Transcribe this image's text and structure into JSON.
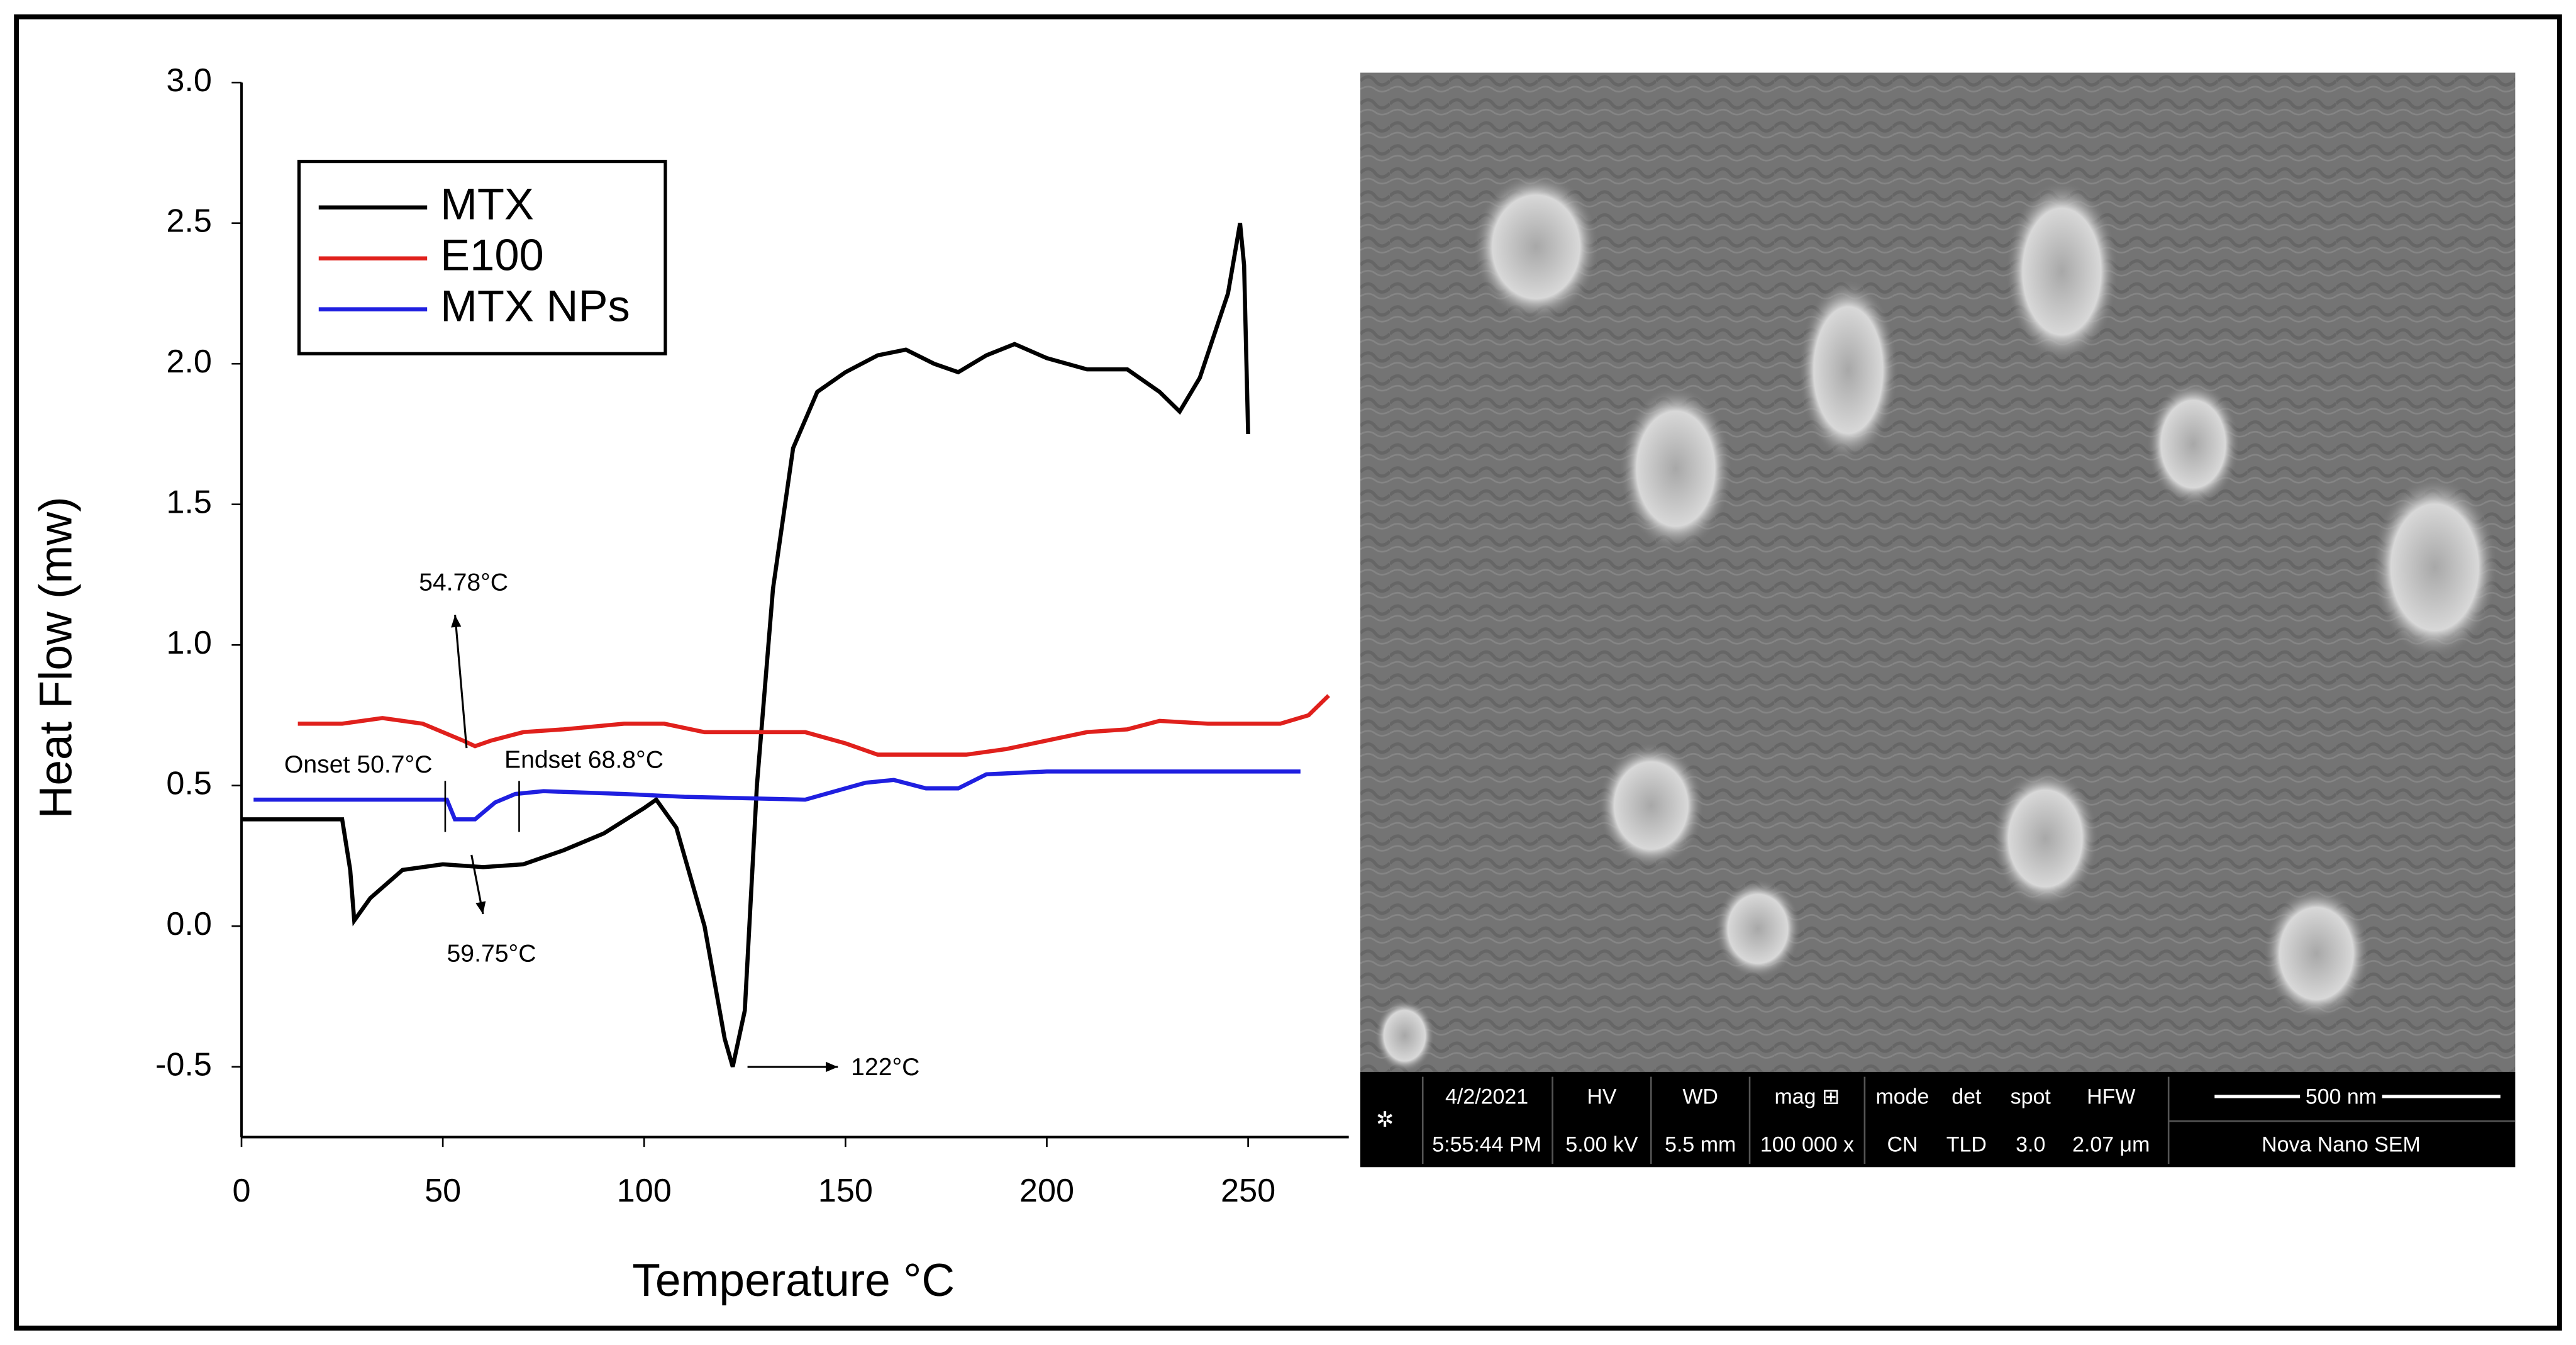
{
  "chart_data": {
    "type": "line",
    "x_label": "Temperature °C",
    "y_label": "Heat Flow (mw)",
    "xlim": [
      0,
      275
    ],
    "ylim": [
      -0.75,
      3.0
    ],
    "xticks": [
      0,
      50,
      100,
      150,
      200,
      250
    ],
    "yticks": [
      -0.5,
      {
        "value": 0,
        "label": "0.0"
      },
      0.5,
      {
        "value": 1,
        "label": "1.0"
      },
      1.5,
      {
        "value": 2,
        "label": "2.0"
      },
      2.5,
      {
        "value": 3,
        "label": "3.0"
      }
    ],
    "legend": "upper left",
    "series": [
      {
        "name": "MTX",
        "color": "#000000",
        "x": [
          0,
          25,
          27,
          28,
          32,
          40,
          50,
          60,
          70,
          80,
          90,
          100,
          103,
          108,
          115,
          120,
          122,
          125,
          128,
          132,
          137,
          143,
          150,
          158,
          165,
          172,
          178,
          185,
          192,
          200,
          210,
          220,
          228,
          233,
          238,
          245,
          248,
          249,
          250
        ],
        "values": [
          0.38,
          0.38,
          0.2,
          0.02,
          0.1,
          0.2,
          0.22,
          0.21,
          0.22,
          0.27,
          0.33,
          0.42,
          0.45,
          0.35,
          0.0,
          -0.4,
          -0.5,
          -0.3,
          0.5,
          1.2,
          1.7,
          1.9,
          1.97,
          2.03,
          2.05,
          2.0,
          1.97,
          2.03,
          2.07,
          2.02,
          1.98,
          1.98,
          1.9,
          1.83,
          1.95,
          2.25,
          2.5,
          2.35,
          1.75
        ]
      },
      {
        "name": "E100",
        "color": "#e0201c",
        "x": [
          14,
          25,
          35,
          45,
          55,
          58,
          62,
          70,
          80,
          95,
          105,
          115,
          140,
          150,
          158,
          180,
          190,
          200,
          210,
          220,
          228,
          240,
          258,
          265,
          270
        ],
        "values": [
          0.72,
          0.72,
          0.74,
          0.72,
          0.66,
          0.64,
          0.66,
          0.69,
          0.7,
          0.72,
          0.72,
          0.69,
          0.69,
          0.65,
          0.61,
          0.61,
          0.63,
          0.66,
          0.69,
          0.7,
          0.73,
          0.72,
          0.72,
          0.75,
          0.82
        ]
      },
      {
        "name": "MTX NPs",
        "color": "#1f1fe0",
        "x": [
          3,
          50,
          51,
          53,
          58,
          63,
          68,
          75,
          95,
          110,
          140,
          145,
          155,
          162,
          170,
          178,
          185,
          200,
          263
        ],
        "values": [
          0.45,
          0.45,
          0.45,
          0.38,
          0.38,
          0.44,
          0.47,
          0.48,
          0.47,
          0.46,
          0.45,
          0.47,
          0.51,
          0.52,
          0.49,
          0.49,
          0.54,
          0.55,
          0.55
        ]
      }
    ],
    "annotations": [
      "54.78°C",
      "59.75°C",
      "Onset 50.7°C",
      "Endset 68.8°C",
      "122°C"
    ]
  },
  "sem_image": {
    "info_bar": {
      "columns": [
        [
          "4/2/2021",
          "5:55:44 PM"
        ],
        [
          "HV",
          "5.00 kV"
        ],
        [
          "WD",
          "5.5 mm"
        ],
        [
          "mag ⊞",
          "100 000 x"
        ],
        [
          "mode",
          "CN"
        ],
        [
          "det",
          "TLD"
        ],
        [
          "spot",
          "3.0"
        ],
        [
          "HFW",
          "2.07 μm"
        ]
      ],
      "scale_bar": "500 nm",
      "instrument": "Nova Nano SEM"
    }
  }
}
